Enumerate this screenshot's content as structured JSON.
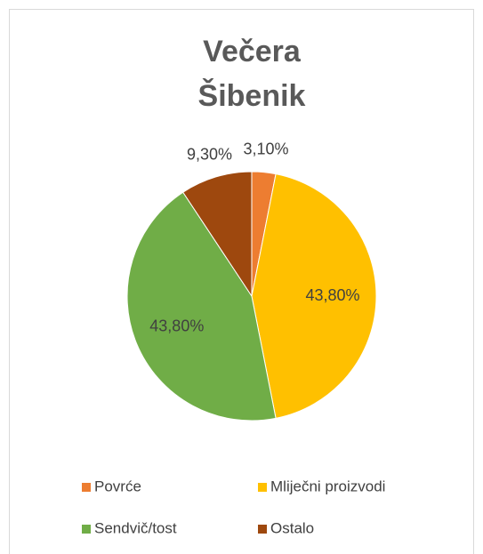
{
  "chart_data": {
    "type": "pie",
    "title": [
      "Večera",
      "Šibenik"
    ],
    "categories": [
      "Povrće",
      "Mliječni proizvodi",
      "Sendvič/tost",
      "Ostalo"
    ],
    "values": [
      3.1,
      43.8,
      43.8,
      9.3
    ],
    "value_labels": [
      "3,10%",
      "43,80%",
      "43,80%",
      "9,30%"
    ],
    "colors": [
      "#ed7d31",
      "#ffc000",
      "#70ad47",
      "#9e480e"
    ],
    "legend": "bottom"
  }
}
